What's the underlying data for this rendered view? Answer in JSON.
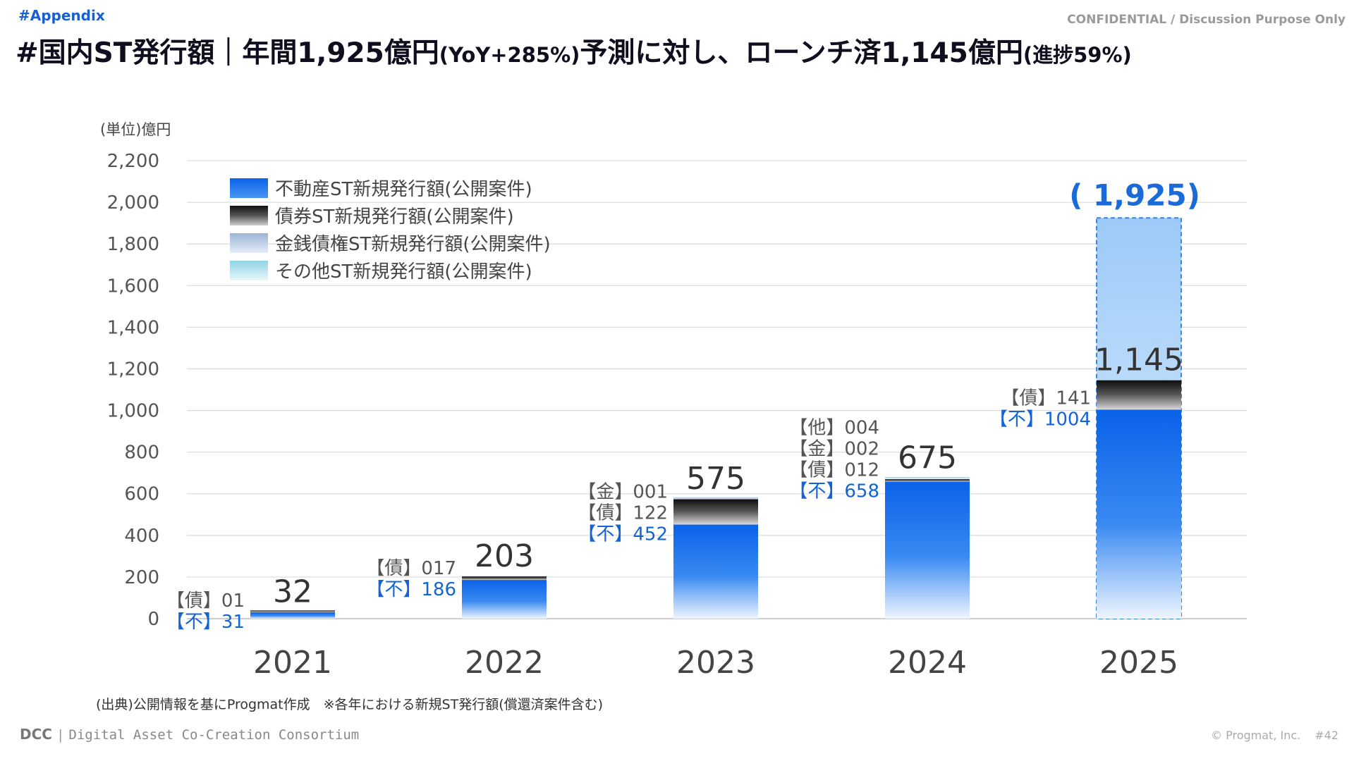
{
  "header": {
    "tag": "#Appendix",
    "confidential": "CONFIDENTIAL / Discussion Purpose Only",
    "title_main": "#国内ST発行額｜年間1,925億円",
    "title_yoy": "(YoY+285%)",
    "title_mid": "予測に対し、ローンチ済1,145億円",
    "title_progress": "(進捗59%)"
  },
  "chart_data": {
    "type": "bar",
    "stacked": true,
    "unit_label": "(単位)億円",
    "categories": [
      "2021",
      "2022",
      "2023",
      "2024",
      "2025"
    ],
    "ylim": [
      0,
      2200
    ],
    "yticks": [
      0,
      200,
      400,
      600,
      800,
      1000,
      1200,
      1400,
      1600,
      1800,
      2000,
      2200
    ],
    "ytick_labels": [
      "0",
      "200",
      "400",
      "600",
      "800",
      "1,000",
      "1,200",
      "1,400",
      "1,600",
      "1,800",
      "2,000",
      "2,200"
    ],
    "grid": true,
    "legend_position": "top-left",
    "series": [
      {
        "name": "不動産ST新規発行額(公開案件)",
        "key": "re",
        "values": [
          31,
          186,
          452,
          658,
          1004
        ]
      },
      {
        "name": "債券ST新規発行額(公開案件)",
        "key": "bond",
        "values": [
          1,
          17,
          122,
          12,
          141
        ]
      },
      {
        "name": "金銭債権ST新規発行額(公開案件)",
        "key": "money",
        "values": [
          0,
          0,
          1,
          2,
          0
        ]
      },
      {
        "name": "その他ST新規発行額(公開案件)",
        "key": "other",
        "values": [
          0,
          0,
          0,
          4,
          0
        ]
      }
    ],
    "totals": [
      "32",
      "203",
      "575",
      "675",
      "1,145"
    ],
    "forecast": {
      "category": "2025",
      "value": 1925,
      "label": "( 1,925)"
    },
    "segment_labels": [
      [
        {
          "text": "【債】01",
          "color": "#555"
        },
        {
          "text": "【不】31",
          "color": "#1464d6"
        }
      ],
      [
        {
          "text": "【債】017",
          "color": "#555"
        },
        {
          "text": "【不】186",
          "color": "#1464d6"
        }
      ],
      [
        {
          "text": "【金】001",
          "color": "#555"
        },
        {
          "text": "【債】122",
          "color": "#555"
        },
        {
          "text": "【不】452",
          "color": "#1464d6"
        }
      ],
      [
        {
          "text": "【他】004",
          "color": "#555"
        },
        {
          "text": "【金】002",
          "color": "#555"
        },
        {
          "text": "【債】012",
          "color": "#555"
        },
        {
          "text": "【不】658",
          "color": "#1464d6"
        }
      ],
      [
        {
          "text": "【債】141",
          "color": "#555"
        },
        {
          "text": "【不】1004",
          "color": "#1464d6"
        }
      ]
    ]
  },
  "source_note": "(出典)公開情報を基にProgmat作成　※各年における新規ST発行額(償還済案件含む)",
  "footer": {
    "logo": "DCC",
    "logo_text": "Digital Asset Co-Creation Consortium",
    "copyright": "© Progmat, Inc.",
    "page": "#42"
  },
  "colors": {
    "accent": "#1464d6",
    "forecast_label": "#1a6ad8"
  }
}
